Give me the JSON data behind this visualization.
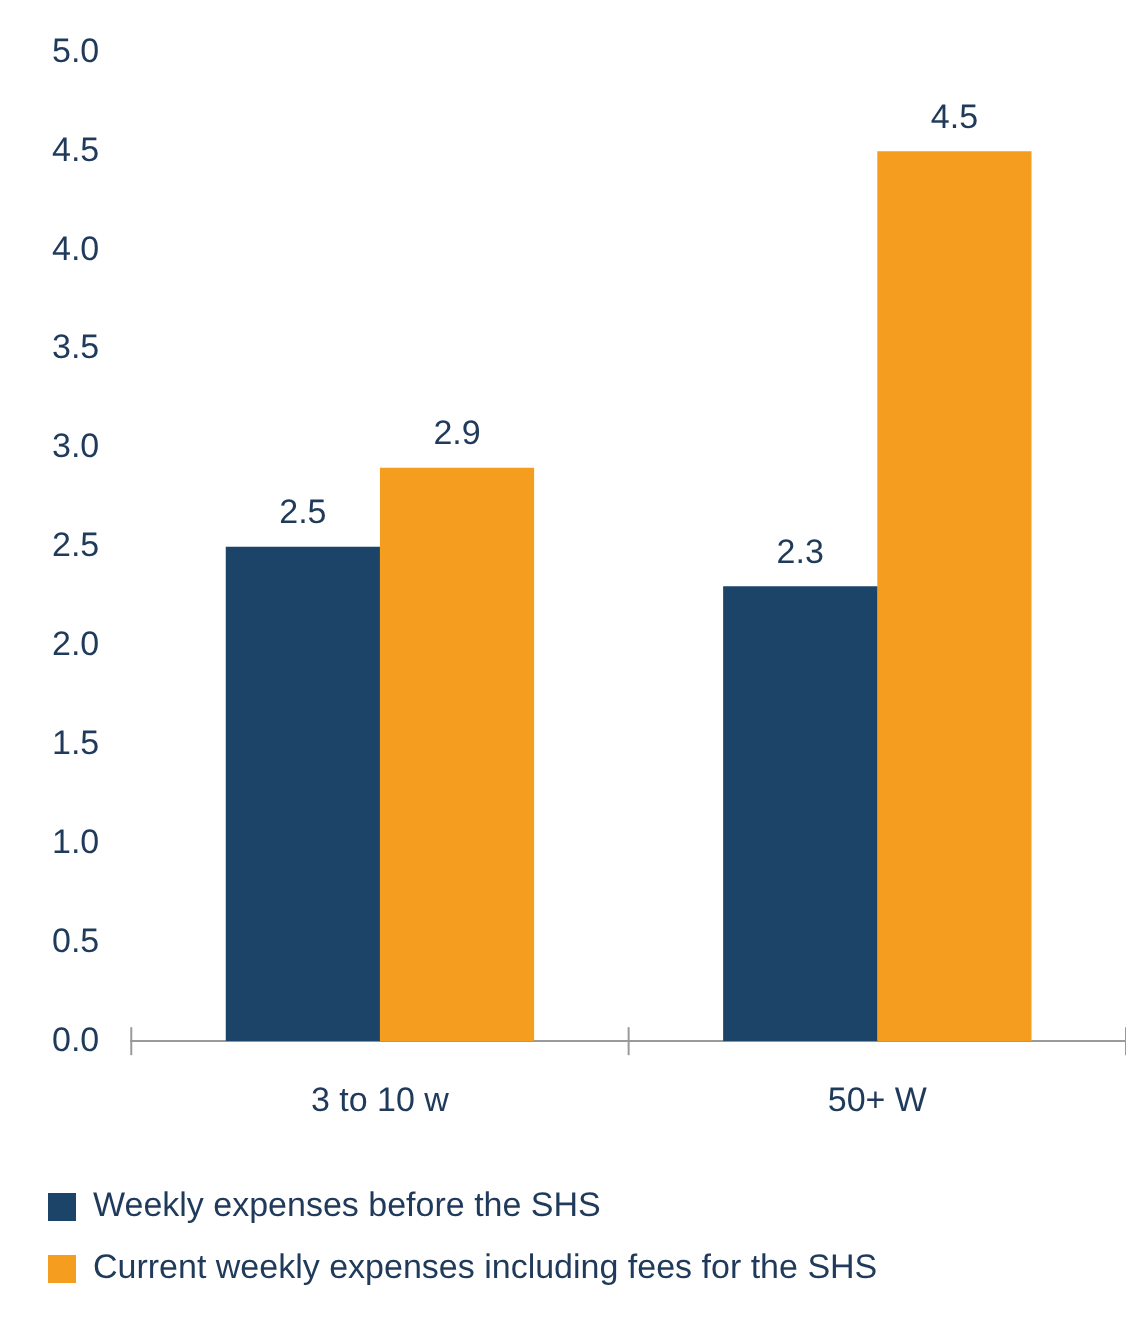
{
  "chart_data": {
    "type": "bar",
    "categories": [
      "3 to 10 w",
      "50+ W"
    ],
    "series": [
      {
        "name": "Weekly expenses before the SHS",
        "color": "#1c4468",
        "values": [
          2.5,
          2.3
        ]
      },
      {
        "name": "Current weekly expenses including fees for the SHS",
        "color": "#f49d1e",
        "values": [
          2.9,
          4.5
        ]
      }
    ],
    "ylim": [
      0,
      5
    ],
    "yticks": [
      {
        "value": 0,
        "label": "0.0"
      },
      {
        "value": 0.5,
        "label": "0.5"
      },
      {
        "value": 1,
        "label": "1.0"
      },
      {
        "value": 1.5,
        "label": "1.5"
      },
      {
        "value": 2,
        "label": "2.0"
      },
      {
        "value": 2.5,
        "label": "2.5"
      },
      {
        "value": 3,
        "label": "3.0"
      },
      {
        "value": 3.5,
        "label": "3.5"
      },
      {
        "value": 4,
        "label": "4.0"
      },
      {
        "value": 4.5,
        "label": "4.5"
      },
      {
        "value": 5,
        "label": "5.0"
      }
    ],
    "grid": false,
    "legend": "bottom",
    "data_labels": true
  }
}
